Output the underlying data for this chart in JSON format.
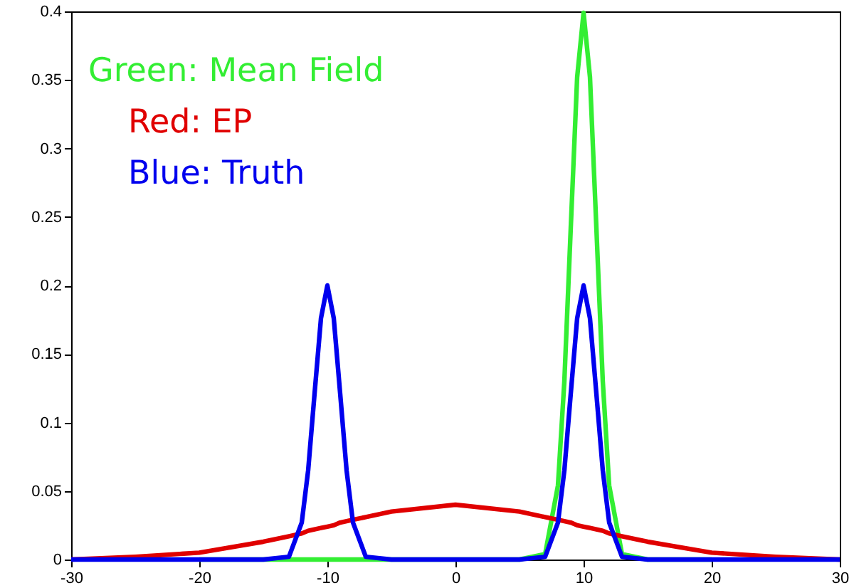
{
  "chart_data": {
    "type": "line",
    "xlim": [
      -30,
      30
    ],
    "xticks": [
      -30,
      -20,
      -10,
      0,
      10,
      20,
      30
    ],
    "ylim": [
      0,
      0.4
    ],
    "yticks": [
      0,
      0.05,
      0.1,
      0.15,
      0.2,
      0.25,
      0.3,
      0.35,
      0.4
    ],
    "grid": false,
    "legend": "top left",
    "marker": "none",
    "line_style": "solid",
    "x": [
      -30,
      -25,
      -20,
      -15,
      -13,
      -12,
      -11.5,
      -11,
      -10.5,
      -10,
      -9.5,
      -9,
      -8.5,
      -8,
      -7,
      -5,
      0,
      5,
      7,
      8,
      8.5,
      9,
      9.5,
      10,
      10.5,
      11,
      11.5,
      12,
      13,
      15,
      20,
      25,
      30
    ],
    "series": [
      {
        "name": "Green: Mean Field",
        "color": "#33ee33",
        "values": [
          null,
          null,
          0,
          0,
          0,
          0,
          0,
          0,
          0,
          0,
          0,
          0,
          0,
          0,
          0,
          0,
          0,
          0,
          0.004,
          0.054,
          0.13,
          0.242,
          0.352,
          0.399,
          0.352,
          0.242,
          0.13,
          0.054,
          0.004,
          0,
          0,
          null,
          null
        ]
      },
      {
        "name": "Red: EP",
        "color": "#e00000",
        "values": [
          0,
          0.002,
          0.005,
          0.013,
          0.017,
          0.019,
          0.021,
          0.022,
          0.023,
          0.024,
          0.025,
          0.027,
          0.028,
          0.029,
          0.031,
          0.035,
          0.04,
          0.035,
          0.031,
          0.029,
          0.028,
          0.027,
          0.025,
          0.024,
          0.023,
          0.022,
          0.021,
          0.019,
          0.017,
          0.013,
          0.005,
          0.002,
          0
        ]
      },
      {
        "name": "Blue: Truth",
        "color": "#0000ee",
        "values": [
          0,
          0,
          0,
          0,
          0.002,
          0.027,
          0.065,
          0.121,
          0.176,
          0.2,
          0.176,
          0.121,
          0.065,
          0.027,
          0.002,
          0,
          0,
          0,
          0.002,
          0.027,
          0.065,
          0.121,
          0.176,
          0.2,
          0.176,
          0.121,
          0.065,
          0.027,
          0.002,
          0,
          0,
          0,
          0
        ]
      }
    ]
  }
}
